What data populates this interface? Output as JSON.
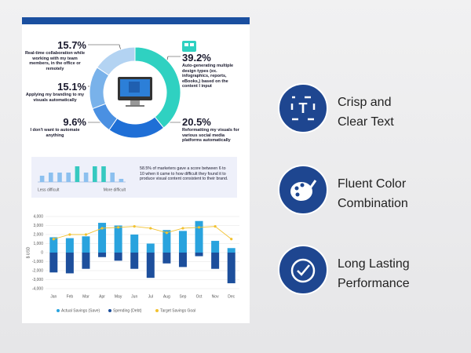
{
  "poster": {
    "donut": {
      "type": "pie",
      "values": [
        39.2,
        20.5,
        9.6,
        15.1,
        15.7
      ],
      "value_labels": [
        "39.2%",
        "20.5%",
        "9.6%",
        "15.1%",
        "15.7%"
      ],
      "descriptions": [
        "Auto-generating multiple design types (ex. infographics, reports, eBooks,) based on the content I input",
        "Reformatting my visuals for various social media platforms automatically",
        "I don't want to automate anything",
        "Applying my branding to my visuals automatically",
        "Real-time collaboration while working with my team members, in the office or remotely"
      ],
      "colors": [
        "#2fd1c1",
        "#1f6fd6",
        "#4a90e2",
        "#79b2ea",
        "#b3d3f2"
      ]
    },
    "difficulty": {
      "type": "bar",
      "values": [
        2,
        3,
        3,
        3,
        5,
        3,
        5,
        5,
        3,
        1
      ],
      "colors": [
        "#8cc0ef",
        "#8cc0ef",
        "#8cc0ef",
        "#8cc0ef",
        "#36c9c0",
        "#8cc0ef",
        "#36c9c0",
        "#36c9c0",
        "#8cc0ef",
        "#8cc0ef"
      ],
      "low_label": "Less difficult",
      "high_label": "More difficult",
      "text": "58.5% of marketers gave a score between 6 to 10 when it came to how difficult they found it to produce visual content consistent to their brand."
    },
    "savings": {
      "type": "bar",
      "categories": [
        "Jan",
        "Feb",
        "Mar",
        "Apr",
        "May",
        "Jun",
        "Jul",
        "Aug",
        "Sep",
        "Oct",
        "Nov",
        "Dec"
      ],
      "y_label": "$ USD",
      "ylim": [
        -4000,
        4000
      ],
      "yticks": [
        {
          "value": -4000,
          "label": "-4,000"
        },
        {
          "value": -3000,
          "label": "-3,000"
        },
        {
          "value": -2000,
          "label": "-2,000"
        },
        {
          "value": -1000,
          "label": "-1,000"
        },
        0,
        {
          "value": 1000,
          "label": "1,000"
        },
        {
          "value": 2000,
          "label": "2,000"
        },
        {
          "value": 3000,
          "label": "3,000"
        },
        {
          "value": 4000,
          "label": "4,000"
        }
      ],
      "grid": true,
      "series": [
        {
          "name": "Actual Savings (Save)",
          "color": "#29a3de",
          "type": "bar",
          "values": [
            1700,
            1600,
            1800,
            3300,
            3000,
            2000,
            1000,
            2500,
            2400,
            3500,
            1300,
            500
          ]
        },
        {
          "name": "Spending (Debt)",
          "color": "#1d4f9c",
          "type": "bar",
          "values": [
            -2200,
            -2300,
            -1800,
            -500,
            -900,
            -1800,
            -2800,
            -1200,
            -1600,
            -400,
            -1800,
            -3400
          ]
        },
        {
          "name": "Target Savings Goal",
          "color": "#f2c230",
          "type": "line",
          "values": [
            1500,
            2000,
            2000,
            2700,
            2800,
            2900,
            2700,
            2200,
            2700,
            2800,
            2900,
            1500
          ]
        }
      ]
    }
  },
  "features": [
    {
      "lines": [
        "Crisp and",
        "Clear Text"
      ]
    },
    {
      "lines": [
        "Fluent Color",
        "Combination"
      ]
    },
    {
      "lines": [
        "Long Lasting",
        "Performance"
      ]
    }
  ]
}
